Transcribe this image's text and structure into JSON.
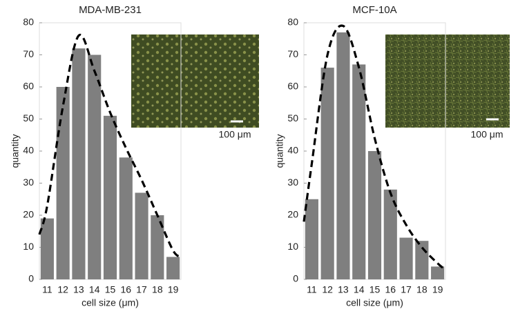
{
  "chart_data": [
    {
      "type": "bar",
      "title": "MDA-MB-231",
      "xlabel": "cell size (μm)",
      "ylabel": "quantity",
      "x": [
        11,
        12,
        13,
        14,
        15,
        16,
        17,
        18,
        19
      ],
      "xlim": [
        10.5,
        19.5
      ],
      "xticks": [
        11,
        12,
        13,
        14,
        15,
        16,
        17,
        18,
        19
      ],
      "ylim": [
        0,
        80
      ],
      "yticks": [
        0,
        10,
        20,
        30,
        40,
        50,
        60,
        70,
        80
      ],
      "inset_label": "100 μm",
      "series": [
        {
          "type": "bar",
          "color": "#7f7f7f",
          "values": [
            19,
            60,
            72,
            70,
            51,
            38,
            27,
            20,
            7
          ]
        },
        {
          "type": "line",
          "color": "#000000",
          "dashed": true,
          "x": [
            10.5,
            11,
            12,
            13,
            14,
            15,
            16,
            17,
            18,
            19,
            19.5
          ],
          "values": [
            14,
            23,
            54,
            76,
            65,
            52,
            41,
            31,
            20,
            9,
            7
          ]
        }
      ]
    },
    {
      "type": "bar",
      "title": "MCF-10A",
      "xlabel": "cell size (μm)",
      "ylabel": "quantity",
      "x": [
        11,
        12,
        13,
        14,
        15,
        16,
        17,
        18,
        19
      ],
      "xlim": [
        10.5,
        19.5
      ],
      "xticks": [
        11,
        12,
        13,
        14,
        15,
        16,
        17,
        18,
        19
      ],
      "ylim": [
        0,
        80
      ],
      "yticks": [
        0,
        10,
        20,
        30,
        40,
        50,
        60,
        70,
        80
      ],
      "inset_label": "100 μm",
      "series": [
        {
          "type": "bar",
          "color": "#7f7f7f",
          "values": [
            25,
            66,
            77,
            67,
            40,
            28,
            13,
            12,
            4
          ]
        },
        {
          "type": "line",
          "color": "#000000",
          "dashed": true,
          "x": [
            10.5,
            11,
            12,
            13,
            14,
            15,
            16,
            17,
            18,
            19,
            19.5
          ],
          "values": [
            18,
            36,
            70,
            79,
            66,
            44,
            27,
            17,
            10,
            5,
            3
          ]
        }
      ]
    }
  ]
}
